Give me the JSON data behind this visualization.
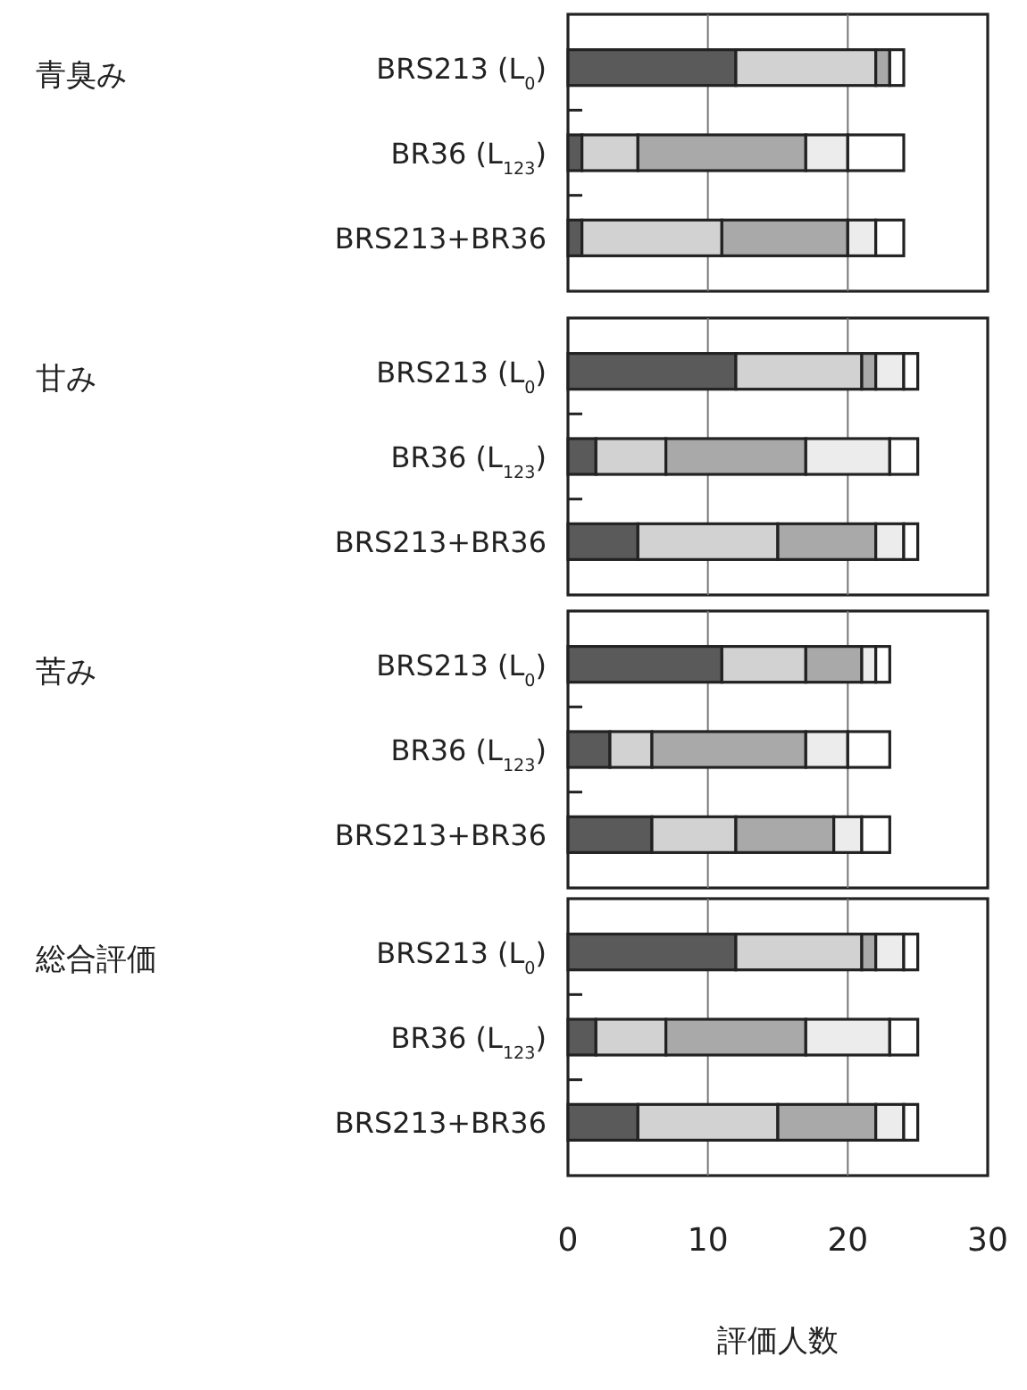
{
  "chart_data": [
    {
      "type": "bar",
      "orientation": "horizontal",
      "stacked": true,
      "ylabel": "青臭み",
      "categories": [
        "BRS213 (L$_{0}$)",
        "BR36 (L$_{123}$)",
        "BRS213+BR36"
      ],
      "xlim": [
        0,
        30
      ],
      "xticks": [
        0,
        10,
        20,
        30
      ],
      "grid": "x",
      "tick_labels": "y",
      "series": [
        {
          "color": "#5a5a5a",
          "values": [
            12,
            1,
            1
          ]
        },
        {
          "color": "#d2d2d2",
          "values": [
            10,
            4,
            10
          ]
        },
        {
          "color": "#a9a9a9",
          "values": [
            1,
            12,
            9
          ]
        },
        {
          "color": "#ececec",
          "values": [
            0,
            3,
            2
          ]
        },
        {
          "color": "#ffffff",
          "values": [
            1,
            4,
            2
          ]
        }
      ]
    },
    {
      "type": "bar",
      "orientation": "horizontal",
      "stacked": true,
      "ylabel": "甘み",
      "categories": [
        "BRS213 (L$_{0}$)",
        "BR36 (L$_{123}$)",
        "BRS213+BR36"
      ],
      "xlim": [
        0,
        30
      ],
      "xticks": [
        0,
        10,
        20,
        30
      ],
      "grid": "x",
      "tick_labels": "y",
      "series": [
        {
          "color": "#5a5a5a",
          "values": [
            12,
            2,
            5
          ]
        },
        {
          "color": "#d2d2d2",
          "values": [
            9,
            5,
            10
          ]
        },
        {
          "color": "#a9a9a9",
          "values": [
            1,
            10,
            7
          ]
        },
        {
          "color": "#ececec",
          "values": [
            2,
            6,
            2
          ]
        },
        {
          "color": "#ffffff",
          "values": [
            1,
            2,
            1
          ]
        }
      ]
    },
    {
      "type": "bar",
      "orientation": "horizontal",
      "stacked": true,
      "ylabel": "苦み",
      "categories": [
        "BRS213 (L$_{0}$)",
        "BR36 (L$_{123}$)",
        "BRS213+BR36"
      ],
      "xlim": [
        0,
        30
      ],
      "xticks": [
        0,
        10,
        20,
        30
      ],
      "grid": "x",
      "tick_labels": "y",
      "series": [
        {
          "color": "#5a5a5a",
          "values": [
            11,
            3,
            6
          ]
        },
        {
          "color": "#d2d2d2",
          "values": [
            6,
            3,
            6
          ]
        },
        {
          "color": "#a9a9a9",
          "values": [
            4,
            11,
            7
          ]
        },
        {
          "color": "#ececec",
          "values": [
            1,
            3,
            2
          ]
        },
        {
          "color": "#ffffff",
          "values": [
            1,
            3,
            2
          ]
        }
      ]
    },
    {
      "type": "bar",
      "orientation": "horizontal",
      "stacked": true,
      "ylabel": "総合評価",
      "xlabel": "評価人数",
      "categories": [
        "BRS213 (L$_{0}$)",
        "BR36 (L$_{123}$)",
        "BRS213+BR36"
      ],
      "xlim": [
        0,
        30
      ],
      "xticks": [
        0,
        10,
        20,
        30
      ],
      "grid": "x",
      "series": [
        {
          "color": "#5a5a5a",
          "values": [
            12,
            2,
            5
          ]
        },
        {
          "color": "#d2d2d2",
          "values": [
            9,
            5,
            10
          ]
        },
        {
          "color": "#a9a9a9",
          "values": [
            1,
            10,
            7
          ]
        },
        {
          "color": "#ececec",
          "values": [
            2,
            6,
            2
          ]
        },
        {
          "color": "#ffffff",
          "values": [
            1,
            2,
            1
          ]
        }
      ]
    }
  ]
}
